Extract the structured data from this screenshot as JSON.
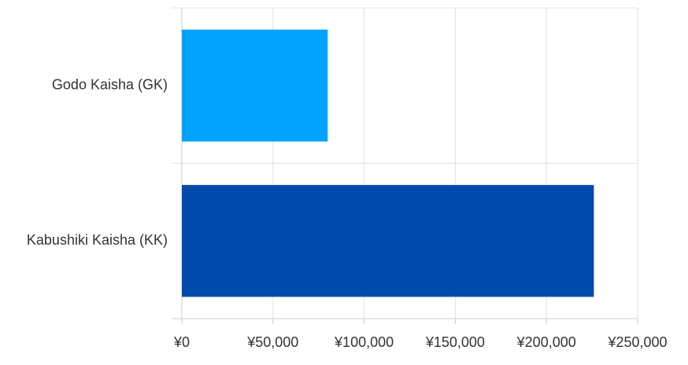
{
  "chart_data": {
    "type": "hbar",
    "categories": [
      "Godo Kaisha (GK)",
      "Kabushiki Kaisha (KK)"
    ],
    "values": [
      80000,
      226000
    ],
    "colors": [
      "#00a2ff",
      "#004aad"
    ],
    "xlim": [
      0,
      250000
    ],
    "xticks": [
      {
        "value": 0,
        "label": "¥0"
      },
      {
        "value": 50000,
        "label": "¥50,000"
      },
      {
        "value": 100000,
        "label": "¥100,000"
      },
      {
        "value": 150000,
        "label": "¥150,000"
      },
      {
        "value": 200000,
        "label": "¥200,000"
      },
      {
        "value": 250000,
        "label": "¥250,000"
      }
    ],
    "grid": true
  }
}
